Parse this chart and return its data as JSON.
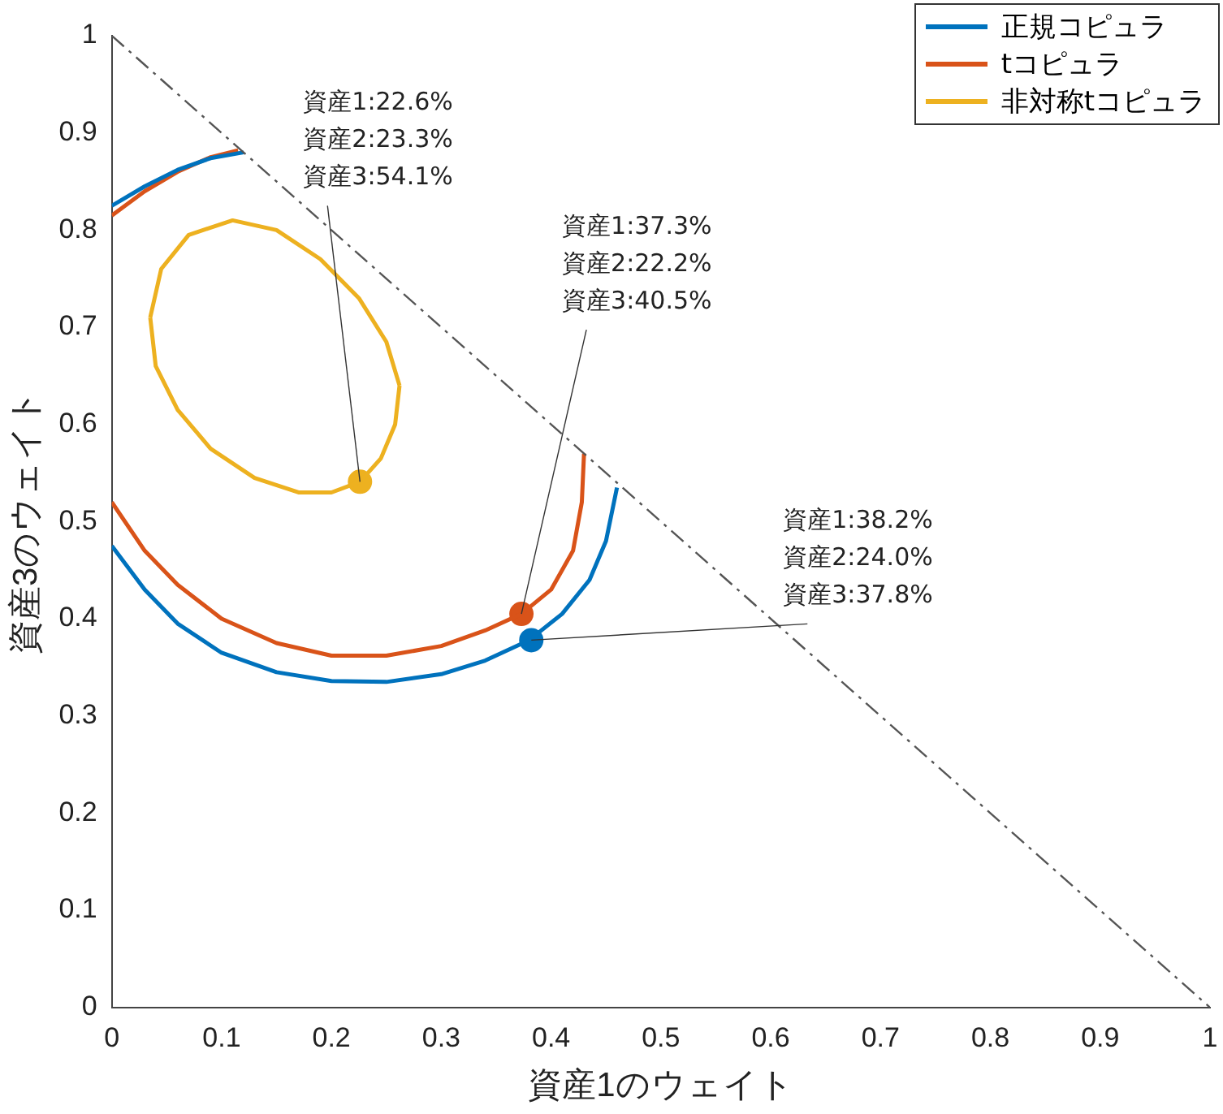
{
  "chart_data": {
    "type": "line",
    "xlabel": "資産1のウェイト",
    "ylabel": "資産3のウェイト",
    "xlim": [
      0,
      1
    ],
    "ylim": [
      0,
      1
    ],
    "xticks": [
      0,
      0.1,
      0.2,
      0.3,
      0.4,
      0.5,
      0.6,
      0.7,
      0.8,
      0.9,
      1
    ],
    "yticks": [
      0,
      0.1,
      0.2,
      0.3,
      0.4,
      0.5,
      0.6,
      0.7,
      0.8,
      0.9,
      1
    ],
    "grid": false,
    "legend": "top right",
    "marker": "none",
    "series": [
      {
        "type": "line",
        "color": "#555555",
        "line_style": "dashed",
        "x": [
          0,
          1
        ],
        "values": [
          1,
          0
        ]
      },
      {
        "name": "正規コピュラ",
        "color": "#0072bd",
        "x": [
          0,
          0.03,
          0.06,
          0.1,
          0.15,
          0.2,
          0.25,
          0.3,
          0.34,
          0.38,
          0.41,
          0.435,
          0.45,
          0.46,
          null,
          0,
          0.03,
          0.06,
          0.09,
          0.12
        ],
        "values": [
          0.475,
          0.43,
          0.395,
          0.365,
          0.345,
          0.336,
          0.335,
          0.343,
          0.357,
          0.378,
          0.405,
          0.44,
          0.48,
          0.535,
          null,
          0.825,
          0.845,
          0.862,
          0.874,
          0.88
        ]
      },
      {
        "name": "tコピュラ",
        "color": "#d95319",
        "x": [
          0,
          0.03,
          0.06,
          0.1,
          0.15,
          0.2,
          0.25,
          0.3,
          0.34,
          0.373,
          0.4,
          0.42,
          0.428,
          0.43,
          null,
          0,
          0.03,
          0.06,
          0.09,
          0.115
        ],
        "values": [
          0.52,
          0.47,
          0.435,
          0.4,
          0.375,
          0.362,
          0.362,
          0.372,
          0.388,
          0.405,
          0.43,
          0.47,
          0.52,
          0.57,
          null,
          0.815,
          0.84,
          0.86,
          0.875,
          0.882
        ]
      },
      {
        "name": "非対称tコピュラ",
        "color": "#edb120",
        "x": [
          0.035,
          0.045,
          0.07,
          0.11,
          0.15,
          0.19,
          0.225,
          0.25,
          0.262,
          null,
          0.035,
          0.04,
          0.06,
          0.09,
          0.13,
          0.17,
          0.2,
          0.226,
          0.245,
          0.258,
          0.262
        ],
        "values": [
          0.71,
          0.76,
          0.795,
          0.81,
          0.8,
          0.77,
          0.73,
          0.685,
          0.64,
          null,
          0.71,
          0.66,
          0.615,
          0.575,
          0.545,
          0.53,
          0.53,
          0.541,
          0.565,
          0.6,
          0.64
        ]
      },
      {
        "type": "scatter",
        "marker": "circle",
        "color": "#edb120",
        "x": [
          0.226
        ],
        "values": [
          0.541
        ]
      },
      {
        "type": "scatter",
        "marker": "circle",
        "color": "#d95319",
        "x": [
          0.373
        ],
        "values": [
          0.405
        ]
      },
      {
        "type": "scatter",
        "marker": "circle",
        "color": "#0072bd",
        "x": [
          0.382
        ],
        "values": [
          0.378
        ]
      }
    ],
    "annotations": [
      {
        "text": "資産1:22.6%\n資産2:23.3%\n資産3:54.1%",
        "x": 0.226,
        "y": 0.541
      },
      {
        "text": "資産1:37.3%\n資産2:22.2%\n資産3:40.5%",
        "x": 0.373,
        "y": 0.405
      },
      {
        "text": "資産1:38.2%\n資産2:24.0%\n資産3:37.8%",
        "x": 0.382,
        "y": 0.378
      }
    ]
  }
}
